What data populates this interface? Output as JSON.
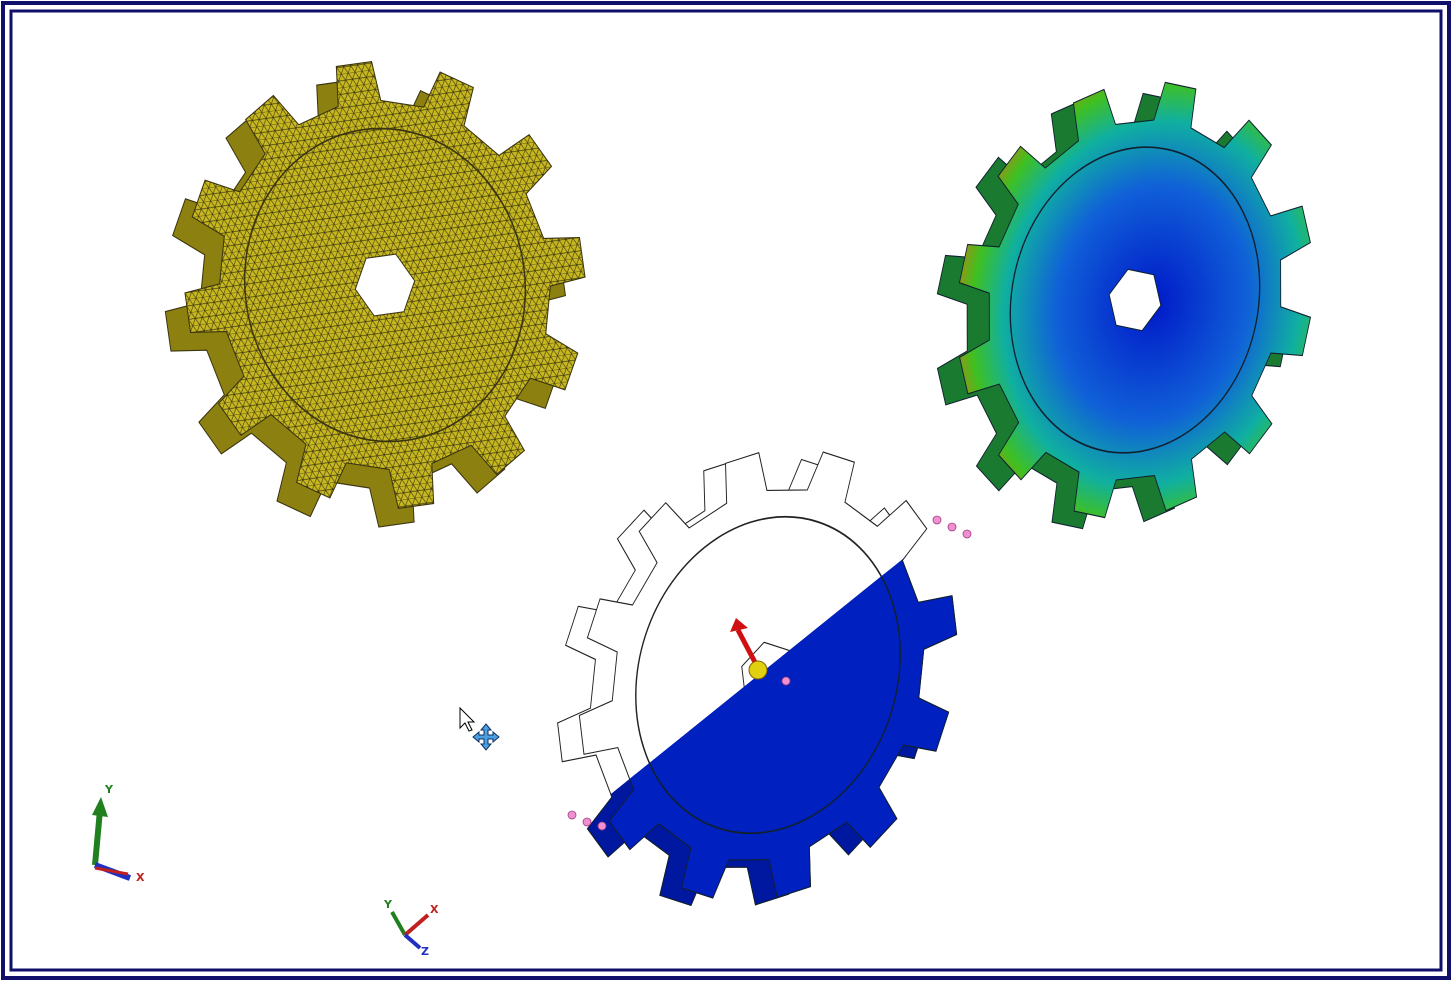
{
  "triads": [
    {
      "y": "Y",
      "x": "X"
    },
    {
      "y": "Y",
      "x": "X",
      "z": "Z"
    }
  ]
}
